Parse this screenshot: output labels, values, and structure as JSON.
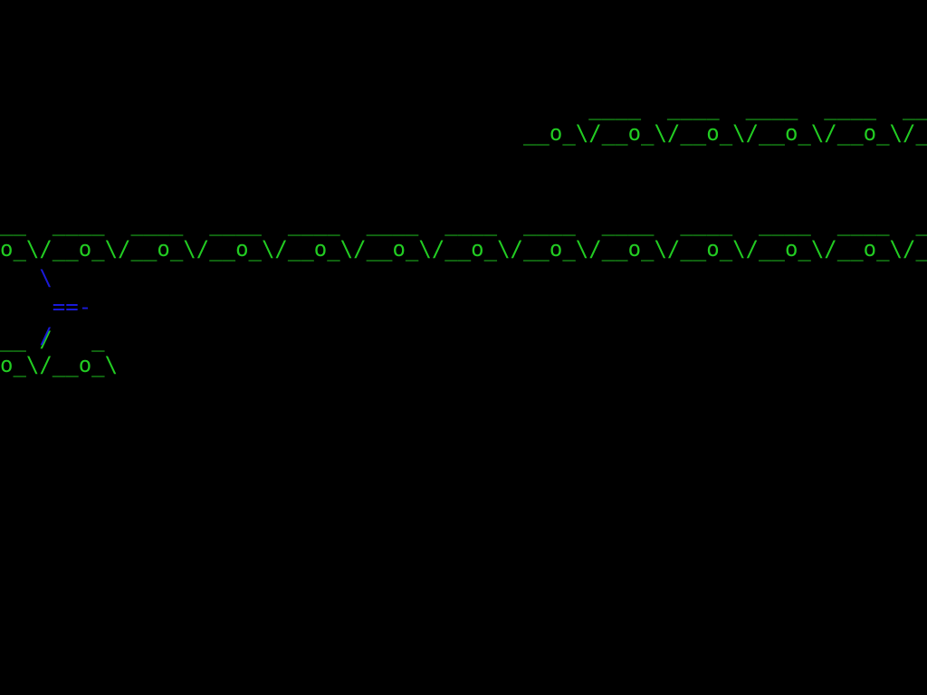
{
  "colors": {
    "background": "#000000",
    "lane_sprite": "#22cc22",
    "player_sprite": "#1a1ad8"
  },
  "lanes": [
    {
      "top_row": "                                             ____  ____  ____  ____  ____",
      "bottom_row": "                                        __o_\\/__o_\\/__o_\\/__o_\\/__o_\\/__o_\\"
    },
    {
      "top_row": "__  ____  ____  ____  ____  ____  ____  ____  ____  ____  ____  ____  ____",
      "bottom_row": "o_\\/__o_\\/__o_\\/__o_\\/__o_\\/__o_\\/__o_\\/__o_\\/__o_\\/__o_\\/__o_\\/__o_\\/__o_\\"
    },
    {
      "top_row": "__ /   _",
      "bottom_row": "o_\\/__o_\\"
    }
  ],
  "player": {
    "icon": "frog-sprite-icon",
    "rows": [
      "   \\",
      "    ==-",
      "   /"
    ]
  }
}
